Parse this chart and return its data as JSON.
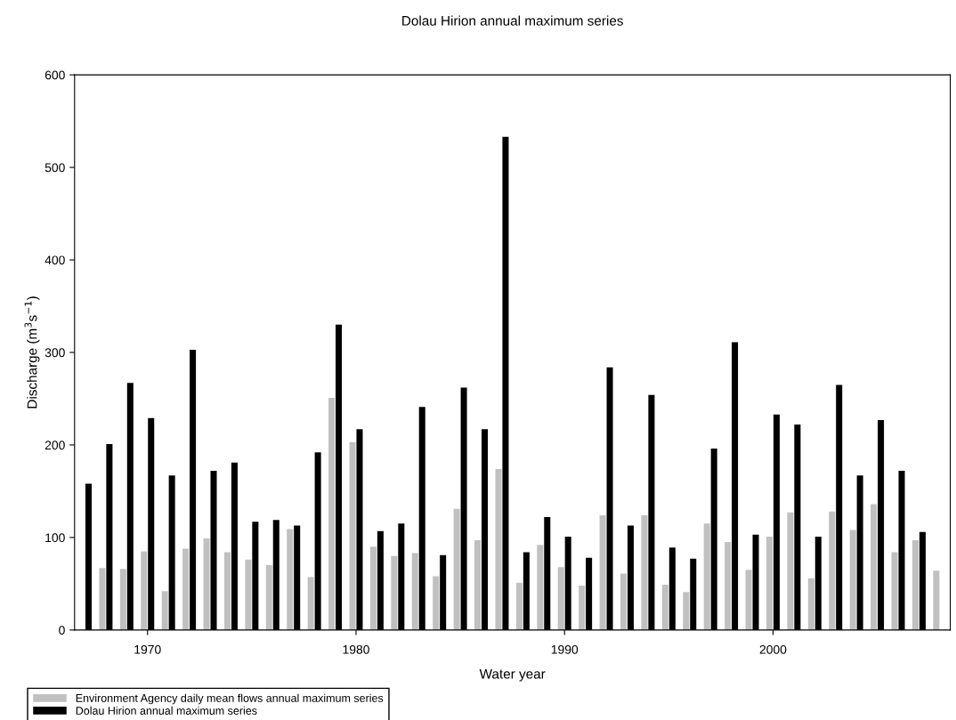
{
  "chart_data": {
    "type": "bar",
    "title": "Dolau Hirion annual maximum series",
    "xlabel": "Water year",
    "ylabel": "Discharge (m$^{3}$s$^{−1}$)",
    "x": [
      1967,
      1968,
      1969,
      1970,
      1971,
      1972,
      1973,
      1974,
      1975,
      1976,
      1977,
      1978,
      1979,
      1980,
      1981,
      1982,
      1983,
      1984,
      1985,
      1986,
      1987,
      1988,
      1989,
      1990,
      1991,
      1992,
      1993,
      1994,
      1995,
      1996,
      1997,
      1998,
      1999,
      2000,
      2001,
      2002,
      2003,
      2004,
      2005,
      2006,
      2007,
      2008
    ],
    "series": [
      {
        "name": "Environment Agency daily mean flows annual maximum series",
        "color": "#c0c0c0",
        "values": [
          null,
          67,
          66,
          85,
          42,
          88,
          99,
          84,
          76,
          70,
          109,
          57,
          251,
          203,
          90,
          80,
          83,
          58,
          131,
          97,
          174,
          51,
          92,
          68,
          48,
          124,
          61,
          124,
          49,
          41,
          115,
          95,
          65,
          101,
          127,
          56,
          128,
          108,
          136,
          84,
          97,
          64
        ]
      },
      {
        "name": "Dolau Hirion annual maximum series",
        "color": "#000000",
        "values": [
          158,
          201,
          267,
          229,
          167,
          303,
          172,
          181,
          117,
          119,
          113,
          192,
          330,
          217,
          107,
          115,
          241,
          81,
          262,
          217,
          533,
          84,
          122,
          101,
          78,
          284,
          113,
          254,
          89,
          77,
          196,
          311,
          103,
          233,
          222,
          101,
          265,
          167,
          227,
          172,
          106,
          null
        ]
      }
    ],
    "xlim": [
      1966.5,
      2008.5
    ],
    "xticks": [
      1970,
      1980,
      1990,
      2000
    ],
    "ylim": [
      0,
      600
    ],
    "yticks": [
      0,
      100,
      200,
      300,
      400,
      500,
      600
    ],
    "grid": false,
    "legend": "bottom left"
  }
}
